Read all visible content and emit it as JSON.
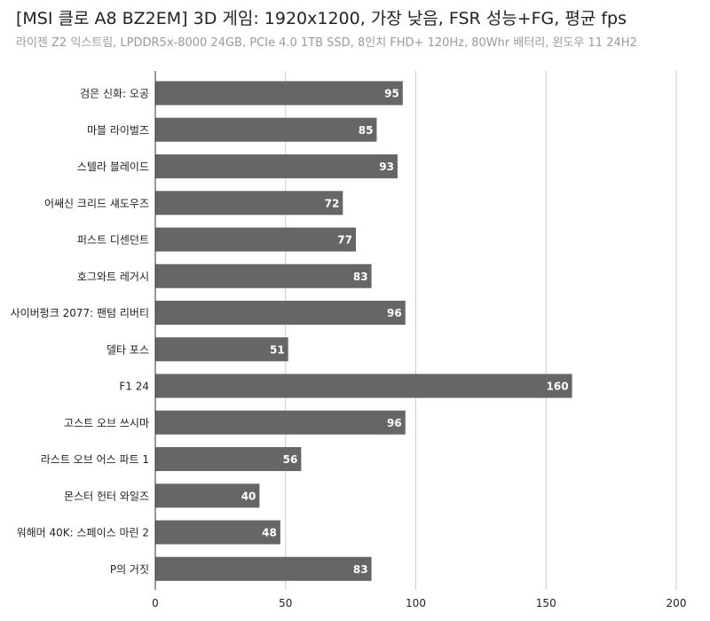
{
  "title": "[MSI 클로 A8 BZ2EM] 3D 게임: 1920x1200, 가장 낮음, FSR 성능+FG, 평균 fps",
  "subtitle": "라이젠 Z2 익스트림, LPDDR5x-8000 24GB, PCIe 4.0 1TB SSD, 8인치 FHD+ 120Hz, 80Whr 배터리, 윈도우 11 24H2",
  "colors": {
    "bar": "#666666",
    "grid": "#cccccc",
    "axis": "#333333",
    "value_text": "#ffffff"
  },
  "chart_data": {
    "type": "bar",
    "orientation": "horizontal",
    "categories": [
      "검은 신화: 오공",
      "마블 라이벌즈",
      "스텔라 블레이드",
      "어쌔신 크리드 섀도우즈",
      "퍼스트 디센던트",
      "호그와트 레거시",
      "사이버펑크 2077: 팬텀 리버티",
      "델타 포스",
      "F1 24",
      "고스트 오브 쓰시마",
      "라스트 오브 어스 파트 1",
      "몬스터 헌터 와일즈",
      "워해머 40K: 스페이스 마린 2",
      "P의 거짓"
    ],
    "values": [
      95,
      85,
      93,
      72,
      77,
      83,
      96,
      51,
      160,
      96,
      56,
      40,
      48,
      83
    ],
    "xlim": [
      0,
      200
    ],
    "xticks": [
      0,
      50,
      100,
      150,
      200
    ],
    "grid": true,
    "legend": "none"
  }
}
